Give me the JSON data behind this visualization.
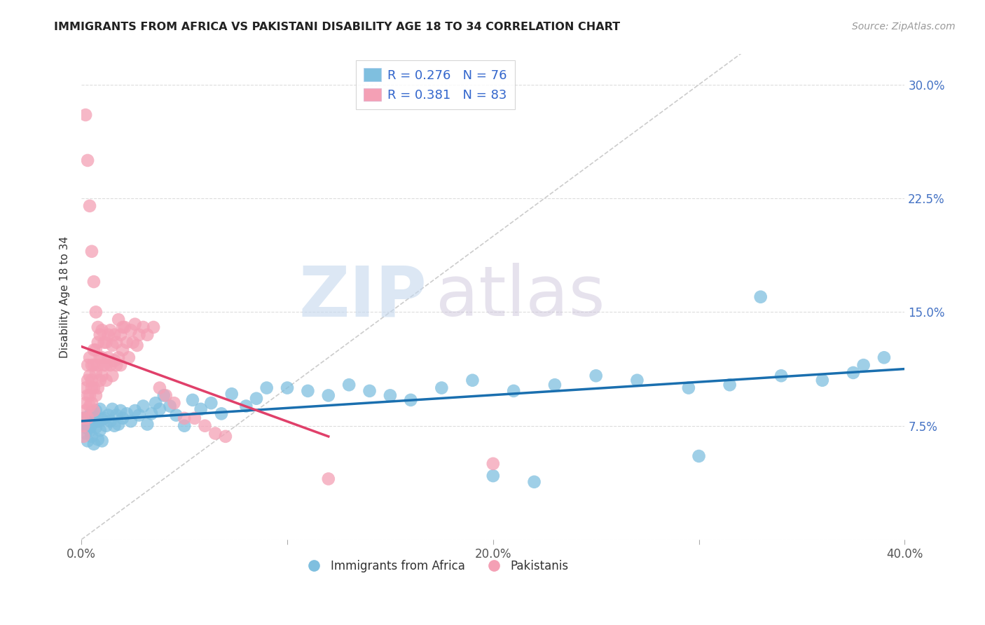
{
  "title": "IMMIGRANTS FROM AFRICA VS PAKISTANI DISABILITY AGE 18 TO 34 CORRELATION CHART",
  "source": "Source: ZipAtlas.com",
  "ylabel": "Disability Age 18 to 34",
  "xlim": [
    0.0,
    0.4
  ],
  "ylim": [
    0.0,
    0.32
  ],
  "xticks": [
    0.0,
    0.1,
    0.2,
    0.3,
    0.4
  ],
  "xticklabels": [
    "0.0%",
    "",
    "20.0%",
    "",
    "40.0%"
  ],
  "yticks": [
    0.0,
    0.075,
    0.15,
    0.225,
    0.3
  ],
  "yticklabels": [
    "",
    "7.5%",
    "15.0%",
    "22.5%",
    "30.0%"
  ],
  "R_africa": 0.276,
  "N_africa": 76,
  "R_pakistan": 0.381,
  "N_pakistan": 83,
  "color_africa": "#7fbfdf",
  "color_pakistan": "#f4a0b5",
  "trendline_africa": "#1a6faf",
  "trendline_pakistan": "#e0406a",
  "diagonal_color": "#cccccc",
  "legend_text_color": "#3366cc",
  "africa_x": [
    0.001,
    0.001,
    0.002,
    0.002,
    0.003,
    0.003,
    0.004,
    0.004,
    0.005,
    0.005,
    0.005,
    0.006,
    0.006,
    0.007,
    0.007,
    0.008,
    0.008,
    0.009,
    0.009,
    0.01,
    0.01,
    0.011,
    0.012,
    0.013,
    0.014,
    0.015,
    0.016,
    0.017,
    0.018,
    0.019,
    0.02,
    0.022,
    0.024,
    0.026,
    0.028,
    0.03,
    0.032,
    0.034,
    0.036,
    0.038,
    0.04,
    0.043,
    0.046,
    0.05,
    0.054,
    0.058,
    0.063,
    0.068,
    0.073,
    0.08,
    0.085,
    0.09,
    0.1,
    0.11,
    0.12,
    0.13,
    0.14,
    0.15,
    0.16,
    0.175,
    0.19,
    0.21,
    0.23,
    0.25,
    0.27,
    0.295,
    0.315,
    0.34,
    0.36,
    0.375,
    0.38,
    0.39,
    0.2,
    0.22,
    0.3,
    0.33
  ],
  "africa_y": [
    0.075,
    0.08,
    0.07,
    0.078,
    0.065,
    0.073,
    0.072,
    0.082,
    0.068,
    0.076,
    0.084,
    0.063,
    0.079,
    0.074,
    0.085,
    0.066,
    0.078,
    0.072,
    0.086,
    0.065,
    0.079,
    0.08,
    0.075,
    0.082,
    0.078,
    0.086,
    0.075,
    0.082,
    0.076,
    0.085,
    0.08,
    0.083,
    0.078,
    0.085,
    0.082,
    0.088,
    0.076,
    0.083,
    0.09,
    0.086,
    0.095,
    0.088,
    0.082,
    0.075,
    0.092,
    0.086,
    0.09,
    0.083,
    0.096,
    0.088,
    0.093,
    0.1,
    0.1,
    0.098,
    0.095,
    0.102,
    0.098,
    0.095,
    0.092,
    0.1,
    0.105,
    0.098,
    0.102,
    0.108,
    0.105,
    0.1,
    0.102,
    0.108,
    0.105,
    0.11,
    0.115,
    0.12,
    0.042,
    0.038,
    0.055,
    0.16
  ],
  "pakistan_x": [
    0.001,
    0.001,
    0.001,
    0.002,
    0.002,
    0.002,
    0.003,
    0.003,
    0.003,
    0.003,
    0.004,
    0.004,
    0.004,
    0.004,
    0.005,
    0.005,
    0.005,
    0.005,
    0.006,
    0.006,
    0.006,
    0.006,
    0.007,
    0.007,
    0.007,
    0.008,
    0.008,
    0.008,
    0.009,
    0.009,
    0.009,
    0.01,
    0.01,
    0.01,
    0.011,
    0.011,
    0.012,
    0.012,
    0.012,
    0.013,
    0.013,
    0.014,
    0.014,
    0.015,
    0.015,
    0.016,
    0.016,
    0.017,
    0.017,
    0.018,
    0.018,
    0.019,
    0.019,
    0.02,
    0.02,
    0.021,
    0.022,
    0.023,
    0.024,
    0.025,
    0.026,
    0.027,
    0.028,
    0.03,
    0.032,
    0.035,
    0.038,
    0.041,
    0.045,
    0.05,
    0.055,
    0.06,
    0.065,
    0.07,
    0.002,
    0.003,
    0.004,
    0.005,
    0.006,
    0.007,
    0.008,
    0.12,
    0.2
  ],
  "pakistan_y": [
    0.075,
    0.08,
    0.068,
    0.09,
    0.1,
    0.085,
    0.095,
    0.105,
    0.115,
    0.08,
    0.095,
    0.108,
    0.12,
    0.088,
    0.1,
    0.115,
    0.09,
    0.105,
    0.1,
    0.115,
    0.125,
    0.085,
    0.11,
    0.125,
    0.095,
    0.115,
    0.13,
    0.1,
    0.12,
    0.135,
    0.105,
    0.12,
    0.138,
    0.108,
    0.13,
    0.115,
    0.13,
    0.115,
    0.105,
    0.135,
    0.12,
    0.138,
    0.115,
    0.128,
    0.108,
    0.135,
    0.118,
    0.13,
    0.115,
    0.145,
    0.12,
    0.135,
    0.115,
    0.14,
    0.125,
    0.14,
    0.13,
    0.12,
    0.138,
    0.13,
    0.142,
    0.128,
    0.135,
    0.14,
    0.135,
    0.14,
    0.1,
    0.095,
    0.09,
    0.08,
    0.08,
    0.075,
    0.07,
    0.068,
    0.28,
    0.25,
    0.22,
    0.19,
    0.17,
    0.15,
    0.14,
    0.04,
    0.05
  ]
}
